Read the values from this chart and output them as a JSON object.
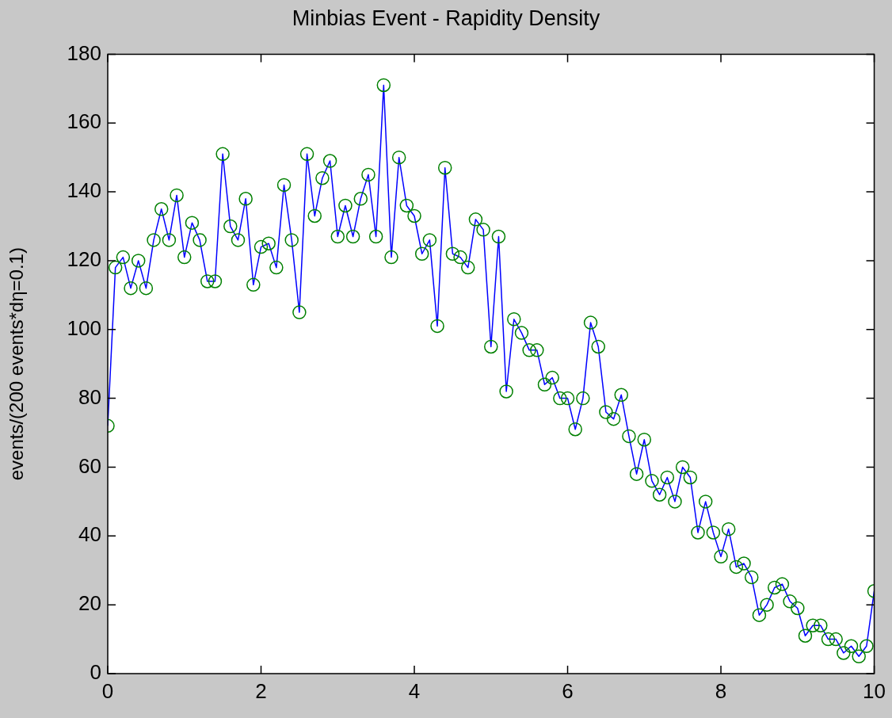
{
  "chart_data": {
    "type": "line",
    "title": "Minbias Event - Rapidity Density",
    "ylabel": "events/(200 events*dη=0.1)",
    "x": [
      0,
      0.1,
      0.2,
      0.3,
      0.4,
      0.5,
      0.6,
      0.7,
      0.8,
      0.9,
      1,
      1.1,
      1.2,
      1.3,
      1.4,
      1.5,
      1.6,
      1.7,
      1.8,
      1.9,
      2,
      2.1,
      2.2,
      2.3,
      2.4,
      2.5,
      2.6,
      2.7,
      2.8,
      2.9,
      3,
      3.1,
      3.2,
      3.3,
      3.4,
      3.5,
      3.6,
      3.7,
      3.8,
      3.9,
      4,
      4.1,
      4.2,
      4.3,
      4.4,
      4.5,
      4.6,
      4.7,
      4.8,
      4.9,
      5,
      5.1,
      5.2,
      5.3,
      5.4,
      5.5,
      5.6,
      5.7,
      5.8,
      5.9,
      6,
      6.1,
      6.2,
      6.3,
      6.4,
      6.5,
      6.6,
      6.7,
      6.8,
      6.9,
      7,
      7.1,
      7.2,
      7.3,
      7.4,
      7.5,
      7.6,
      7.7,
      7.8,
      7.9,
      8,
      8.1,
      8.2,
      8.3,
      8.4,
      8.5,
      8.6,
      8.7,
      8.8,
      8.9,
      9,
      9.1,
      9.2,
      9.3,
      9.4,
      9.5,
      9.6,
      9.7,
      9.8,
      9.9,
      10
    ],
    "series": [
      {
        "color": "#0000ff",
        "colors": [
          "#008000",
          "#008000",
          "#008000",
          "#008000",
          "#008000",
          "#008000",
          "#008000",
          "#008000",
          "#008000",
          "#008000",
          "#008000",
          "#008000",
          "#008000",
          "#008000",
          "#008000",
          "#008000",
          "#008000",
          "#008000",
          "#008000",
          "#008000",
          "#008000",
          "#008000",
          "#008000",
          "#008000",
          "#008000",
          "#008000",
          "#008000",
          "#008000",
          "#008000",
          "#008000",
          "#008000",
          "#008000",
          "#008000",
          "#008000",
          "#008000",
          "#008000",
          "#008000",
          "#008000",
          "#008000",
          "#008000",
          "#008000",
          "#008000",
          "#008000",
          "#008000",
          "#008000",
          "#008000",
          "#008000",
          "#008000",
          "#008000",
          "#008000",
          "#008000",
          "#008000",
          "#008000",
          "#008000",
          "#008000",
          "#008000",
          "#008000",
          "#008000",
          "#008000",
          "#008000",
          "#008000",
          "#008000",
          "#008000",
          "#008000",
          "#008000",
          "#008000",
          "#008000",
          "#008000",
          "#008000",
          "#008000",
          "#008000",
          "#008000",
          "#008000",
          "#008000",
          "#008000",
          "#008000",
          "#008000",
          "#008000",
          "#008000",
          "#008000",
          "#008000",
          "#008000",
          "#008000",
          "#008000",
          "#008000",
          "#008000",
          "#008000",
          "#008000",
          "#008000",
          "#008000",
          "#008000",
          "#008000",
          "#008000",
          "#008000",
          "#008000",
          "#008000",
          "#008000",
          "#008000",
          "#008000",
          "#008000",
          "#008000"
        ],
        "values": [
          72,
          118,
          121,
          112,
          120,
          112,
          126,
          135,
          126,
          139,
          121,
          131,
          126,
          114,
          114,
          151,
          130,
          126,
          138,
          113,
          124,
          125,
          118,
          142,
          126,
          105,
          151,
          133,
          144,
          149,
          127,
          136,
          127,
          138,
          145,
          127,
          171,
          121,
          150,
          136,
          133,
          122,
          126,
          101,
          147,
          122,
          121,
          118,
          132,
          129,
          95,
          127,
          82,
          103,
          99,
          94,
          94,
          84,
          86,
          80,
          80,
          71,
          80,
          102,
          95,
          76,
          74,
          81,
          69,
          58,
          68,
          56,
          52,
          57,
          50,
          60,
          57,
          41,
          50,
          41,
          34,
          42,
          31,
          32,
          28,
          17,
          20,
          25,
          26,
          21,
          19,
          11,
          14,
          14,
          10,
          10,
          6,
          8,
          5,
          8,
          24
        ]
      }
    ],
    "xlim": [
      0,
      10
    ],
    "xticks": [
      0,
      2,
      4,
      6,
      8,
      10
    ],
    "ylim": [
      0,
      180
    ],
    "yticks": [
      0,
      20,
      40,
      60,
      80,
      100,
      120,
      140,
      160,
      180
    ],
    "grid": false,
    "legend": false,
    "marker": "circle",
    "line_style": "solid"
  }
}
